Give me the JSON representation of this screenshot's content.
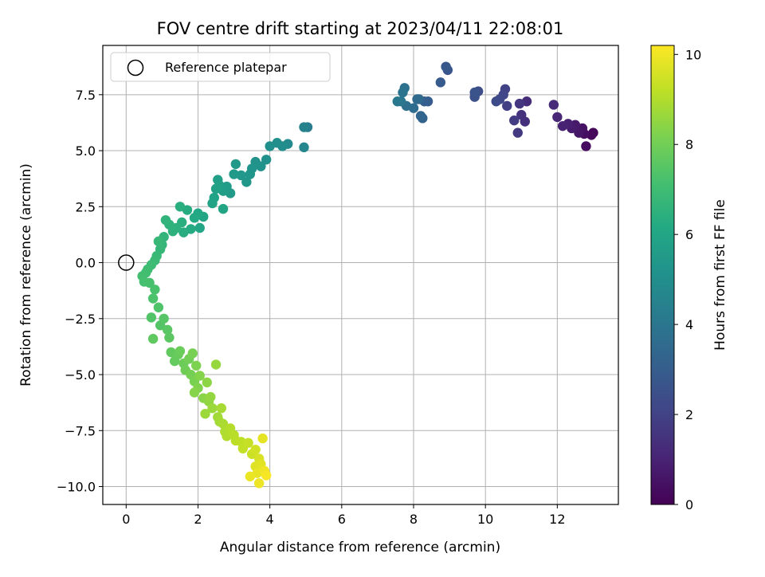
{
  "chart_data": {
    "type": "scatter",
    "title": "FOV centre drift starting at 2023/04/11 22:08:01",
    "xlabel": "Angular distance from reference (arcmin)",
    "ylabel": "Rotation from reference (arcmin)",
    "xlim": [
      -0.65,
      13.7
    ],
    "ylim": [
      -10.8,
      9.7
    ],
    "xticks": [
      0,
      2,
      4,
      6,
      8,
      10,
      12
    ],
    "yticks": [
      -10.0,
      -7.5,
      -5.0,
      -2.5,
      0.0,
      2.5,
      5.0,
      7.5
    ],
    "xtick_labels": [
      "0",
      "2",
      "4",
      "6",
      "8",
      "10",
      "12"
    ],
    "ytick_labels": [
      "−10.0",
      "−7.5",
      "−5.0",
      "−2.5",
      "0.0",
      "2.5",
      "5.0",
      "7.5"
    ],
    "grid": true,
    "legend": {
      "placement": "top-left",
      "label": "Reference platepar"
    },
    "reference_point": {
      "x": 0,
      "y": 0
    },
    "colorbar": {
      "label": "Hours from first FF file",
      "colormap": "viridis",
      "range": [
        0,
        10.2
      ],
      "ticks": [
        0,
        2,
        4,
        6,
        8,
        10
      ],
      "tick_labels": [
        "0",
        "2",
        "4",
        "6",
        "8",
        "10"
      ]
    },
    "points": [
      [
        13.0,
        5.8,
        0.1
      ],
      [
        12.95,
        5.7,
        0.2
      ],
      [
        12.8,
        5.2,
        0.3
      ],
      [
        12.75,
        5.75,
        0.4
      ],
      [
        12.7,
        6.0,
        0.5
      ],
      [
        12.6,
        5.8,
        0.6
      ],
      [
        12.5,
        6.15,
        0.7
      ],
      [
        12.4,
        6.0,
        0.8
      ],
      [
        12.3,
        6.2,
        0.9
      ],
      [
        12.15,
        6.1,
        1.0
      ],
      [
        12.0,
        6.5,
        1.1
      ],
      [
        11.9,
        7.05,
        1.2
      ],
      [
        11.15,
        7.2,
        1.3
      ],
      [
        11.1,
        6.3,
        1.4
      ],
      [
        11.0,
        6.6,
        1.5
      ],
      [
        10.95,
        7.1,
        1.6
      ],
      [
        10.9,
        5.8,
        1.7
      ],
      [
        10.8,
        6.35,
        1.8
      ],
      [
        10.6,
        7.0,
        1.9
      ],
      [
        10.55,
        7.75,
        2.0
      ],
      [
        10.5,
        7.5,
        2.1
      ],
      [
        10.4,
        7.3,
        2.2
      ],
      [
        10.3,
        7.2,
        2.3
      ],
      [
        9.8,
        7.65,
        2.4
      ],
      [
        9.7,
        7.4,
        2.5
      ],
      [
        9.7,
        7.6,
        2.6
      ],
      [
        8.95,
        8.6,
        2.7
      ],
      [
        8.9,
        8.75,
        2.8
      ],
      [
        8.75,
        8.05,
        2.9
      ],
      [
        8.4,
        7.2,
        3.0
      ],
      [
        8.3,
        7.2,
        3.1
      ],
      [
        8.25,
        6.45,
        3.2
      ],
      [
        8.2,
        6.55,
        3.3
      ],
      [
        8.15,
        7.3,
        3.4
      ],
      [
        8.1,
        7.3,
        3.5
      ],
      [
        8.0,
        6.9,
        3.6
      ],
      [
        7.8,
        7.0,
        3.7
      ],
      [
        7.75,
        7.8,
        3.8
      ],
      [
        7.7,
        7.6,
        3.9
      ],
      [
        7.65,
        7.2,
        4.0
      ],
      [
        7.55,
        7.2,
        4.1
      ],
      [
        5.05,
        6.05,
        4.3
      ],
      [
        4.95,
        6.05,
        4.5
      ],
      [
        4.95,
        5.15,
        4.7
      ],
      [
        4.5,
        5.3,
        4.8
      ],
      [
        4.35,
        5.2,
        4.9
      ],
      [
        4.2,
        5.35,
        5.0
      ],
      [
        4.0,
        5.2,
        5.05
      ],
      [
        3.9,
        4.6,
        5.1
      ],
      [
        3.75,
        4.3,
        5.15
      ],
      [
        3.6,
        4.5,
        5.2
      ],
      [
        3.5,
        4.2,
        5.25
      ],
      [
        3.45,
        3.95,
        5.3
      ],
      [
        3.35,
        3.6,
        5.35
      ],
      [
        3.2,
        3.9,
        5.4
      ],
      [
        3.05,
        4.4,
        5.45
      ],
      [
        3.0,
        3.95,
        5.5
      ],
      [
        2.9,
        3.1,
        5.55
      ],
      [
        2.8,
        3.4,
        5.6
      ],
      [
        2.7,
        3.2,
        5.65
      ],
      [
        2.6,
        3.45,
        5.7
      ],
      [
        2.55,
        3.7,
        5.75
      ],
      [
        2.5,
        3.3,
        5.8
      ],
      [
        2.45,
        2.9,
        5.85
      ],
      [
        2.4,
        2.65,
        5.9
      ],
      [
        2.7,
        2.4,
        5.95
      ],
      [
        2.15,
        2.05,
        6.0
      ],
      [
        2.05,
        1.55,
        6.05
      ],
      [
        2.0,
        2.2,
        6.1
      ],
      [
        1.9,
        2.0,
        6.15
      ],
      [
        1.8,
        1.5,
        6.2
      ],
      [
        1.7,
        2.35,
        6.25
      ],
      [
        1.6,
        1.35,
        6.3
      ],
      [
        1.55,
        1.8,
        6.35
      ],
      [
        1.5,
        2.5,
        6.4
      ],
      [
        1.4,
        1.55,
        6.45
      ],
      [
        1.3,
        1.4,
        6.5
      ],
      [
        1.2,
        1.7,
        6.55
      ],
      [
        1.1,
        1.9,
        6.6
      ],
      [
        1.05,
        1.15,
        6.65
      ],
      [
        1.0,
        0.8,
        6.7
      ],
      [
        0.95,
        0.6,
        6.75
      ],
      [
        0.9,
        0.95,
        6.8
      ],
      [
        0.85,
        0.3,
        6.85
      ],
      [
        0.8,
        0.1,
        6.9
      ],
      [
        0.7,
        -0.1,
        6.95
      ],
      [
        0.6,
        -0.3,
        7.0
      ],
      [
        0.55,
        -0.45,
        7.05
      ],
      [
        0.45,
        -0.6,
        7.1
      ],
      [
        0.5,
        -0.85,
        7.15
      ],
      [
        0.65,
        -0.9,
        7.2
      ],
      [
        0.8,
        -1.2,
        7.25
      ],
      [
        0.75,
        -1.6,
        7.3
      ],
      [
        0.9,
        -2.0,
        7.35
      ],
      [
        0.7,
        -2.45,
        7.4
      ],
      [
        0.95,
        -2.8,
        7.45
      ],
      [
        1.05,
        -2.5,
        7.5
      ],
      [
        1.15,
        -3.0,
        7.55
      ],
      [
        1.2,
        -3.35,
        7.6
      ],
      [
        0.75,
        -3.4,
        7.65
      ],
      [
        1.25,
        -4.0,
        7.7
      ],
      [
        1.35,
        -4.4,
        7.75
      ],
      [
        1.45,
        -4.1,
        7.8
      ],
      [
        1.5,
        -3.95,
        7.85
      ],
      [
        1.6,
        -4.5,
        7.9
      ],
      [
        1.65,
        -4.8,
        7.95
      ],
      [
        1.75,
        -4.3,
        8.0
      ],
      [
        1.8,
        -5.0,
        8.05
      ],
      [
        1.85,
        -4.05,
        8.1
      ],
      [
        1.9,
        -5.3,
        8.15
      ],
      [
        1.95,
        -4.6,
        8.2
      ],
      [
        2.0,
        -5.6,
        8.25
      ],
      [
        2.05,
        -5.05,
        8.3
      ],
      [
        1.9,
        -5.8,
        8.35
      ],
      [
        2.15,
        -6.05,
        8.4
      ],
      [
        2.25,
        -5.35,
        8.45
      ],
      [
        2.3,
        -6.2,
        8.5
      ],
      [
        2.35,
        -6.0,
        8.55
      ],
      [
        2.5,
        -4.55,
        8.6
      ],
      [
        2.4,
        -6.5,
        8.65
      ],
      [
        2.2,
        -6.75,
        8.7
      ],
      [
        2.55,
        -6.9,
        8.75
      ],
      [
        2.6,
        -7.1,
        8.8
      ],
      [
        2.65,
        -6.5,
        8.85
      ],
      [
        2.7,
        -7.2,
        8.9
      ],
      [
        2.75,
        -7.55,
        8.95
      ],
      [
        2.8,
        -7.75,
        9.0
      ],
      [
        2.9,
        -7.4,
        9.05
      ],
      [
        3.0,
        -7.7,
        9.1
      ],
      [
        3.05,
        -7.95,
        9.15
      ],
      [
        3.2,
        -8.0,
        9.2
      ],
      [
        3.25,
        -8.3,
        9.25
      ],
      [
        3.4,
        -8.05,
        9.3
      ],
      [
        3.5,
        -8.55,
        9.4
      ],
      [
        3.6,
        -8.35,
        9.5
      ],
      [
        3.7,
        -8.75,
        9.6
      ],
      [
        3.6,
        -9.1,
        9.7
      ],
      [
        3.75,
        -9.0,
        9.75
      ],
      [
        3.8,
        -7.85,
        9.8
      ],
      [
        3.65,
        -9.4,
        9.85
      ],
      [
        3.45,
        -9.55,
        9.9
      ],
      [
        3.7,
        -9.85,
        9.95
      ],
      [
        3.85,
        -9.3,
        10.0
      ],
      [
        3.9,
        -9.5,
        10.1
      ]
    ]
  }
}
